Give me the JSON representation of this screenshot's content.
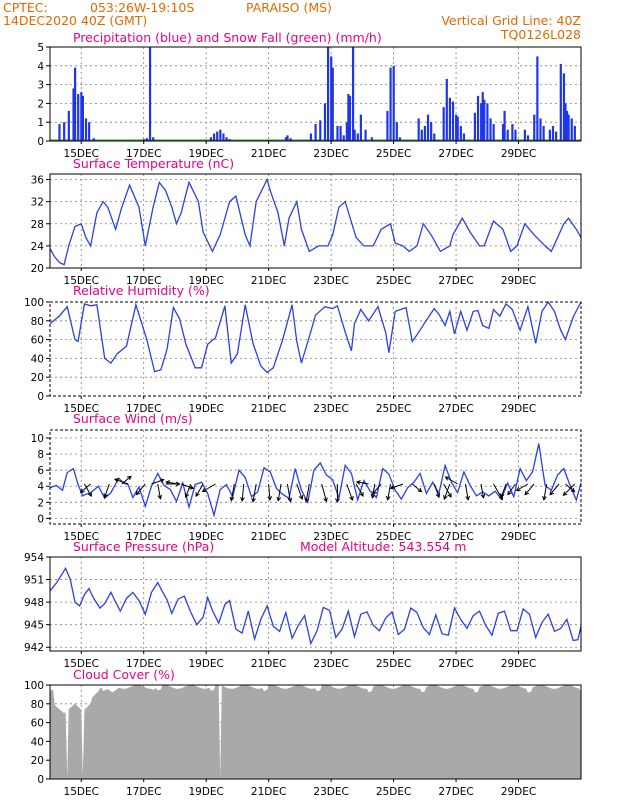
{
  "header": {
    "center": "CPTEC:",
    "coords": "053:26W-19:10S",
    "location": "PARAISO (MS)",
    "run": "14DEC2020 40Z (GMT)",
    "grid_note": "Vertical Grid Line: 40Z",
    "model_code": "TQ0126L028"
  },
  "colors": {
    "header": "#e06a00",
    "title": "#e8008a",
    "series": "#2b40e6",
    "precip": "#1f36e8",
    "snow": "#1ea51e",
    "cloud": "#a9a9a9"
  },
  "chart_data": [
    {
      "type": "bar",
      "title": "Precipitation (blue) and Snow Fall (green) (mm/h)",
      "ylim": [
        0,
        5
      ],
      "yticks": [
        "0",
        "1",
        "2",
        "3",
        "4",
        "5"
      ],
      "xticks": [
        "15DEC",
        "17DEC",
        "19DEC",
        "21DEC",
        "23DEC",
        "25DEC",
        "27DEC",
        "29DEC"
      ],
      "series": [
        {
          "name": "Precipitation",
          "bars": [
            [
              0.3,
              0.9
            ],
            [
              0.45,
              1.0
            ],
            [
              0.6,
              1.6
            ],
            [
              0.75,
              2.8
            ],
            [
              0.8,
              3.9
            ],
            [
              0.9,
              2.5
            ],
            [
              1.0,
              2.6
            ],
            [
              1.05,
              2.4
            ],
            [
              1.15,
              1.2
            ],
            [
              1.25,
              1.0
            ],
            [
              1.4,
              0.15
            ],
            [
              3.0,
              0.1
            ],
            [
              3.1,
              0.15
            ],
            [
              3.2,
              5.0
            ],
            [
              3.3,
              0.2
            ],
            [
              5.15,
              0.2
            ],
            [
              5.25,
              0.4
            ],
            [
              5.35,
              0.5
            ],
            [
              5.45,
              0.6
            ],
            [
              5.55,
              0.4
            ],
            [
              5.65,
              0.2
            ],
            [
              5.75,
              0.1
            ],
            [
              7.55,
              0.2
            ],
            [
              7.6,
              0.3
            ],
            [
              7.7,
              0.15
            ],
            [
              8.35,
              0.4
            ],
            [
              8.5,
              0.9
            ],
            [
              8.65,
              1.1
            ],
            [
              8.8,
              2.0
            ],
            [
              8.9,
              5.0
            ],
            [
              9.0,
              4.5
            ],
            [
              9.05,
              3.9
            ],
            [
              9.2,
              0.8
            ],
            [
              9.3,
              0.8
            ],
            [
              9.4,
              0.3
            ],
            [
              9.5,
              1.0
            ],
            [
              9.55,
              2.5
            ],
            [
              9.6,
              2.4
            ],
            [
              9.7,
              5.0
            ],
            [
              9.75,
              0.6
            ],
            [
              9.85,
              0.4
            ],
            [
              9.95,
              1.4
            ],
            [
              10.1,
              0.6
            ],
            [
              10.3,
              0.2
            ],
            [
              10.8,
              1.6
            ],
            [
              10.9,
              3.9
            ],
            [
              11.0,
              4.0
            ],
            [
              11.1,
              1.0
            ],
            [
              11.2,
              0.2
            ],
            [
              11.8,
              1.2
            ],
            [
              11.9,
              0.6
            ],
            [
              12.0,
              0.8
            ],
            [
              12.1,
              1.4
            ],
            [
              12.2,
              1.0
            ],
            [
              12.3,
              0.4
            ],
            [
              12.6,
              1.8
            ],
            [
              12.7,
              3.3
            ],
            [
              12.8,
              2.3
            ],
            [
              12.9,
              2.1
            ],
            [
              13.0,
              1.4
            ],
            [
              13.05,
              1.3
            ],
            [
              13.15,
              0.8
            ],
            [
              13.25,
              0.4
            ],
            [
              13.6,
              1.5
            ],
            [
              13.7,
              2.4
            ],
            [
              13.8,
              2.0
            ],
            [
              13.85,
              2.6
            ],
            [
              13.9,
              2.2
            ],
            [
              14.0,
              2.0
            ],
            [
              14.1,
              1.2
            ],
            [
              14.2,
              0.9
            ],
            [
              14.5,
              0.9
            ],
            [
              14.55,
              1.6
            ],
            [
              14.65,
              0.6
            ],
            [
              14.8,
              0.9
            ],
            [
              14.9,
              0.6
            ],
            [
              15.2,
              0.6
            ],
            [
              15.3,
              0.3
            ],
            [
              15.5,
              1.4
            ],
            [
              15.6,
              4.5
            ],
            [
              15.7,
              1.2
            ],
            [
              15.8,
              0.8
            ],
            [
              16.0,
              0.6
            ],
            [
              16.1,
              0.8
            ],
            [
              16.2,
              0.5
            ],
            [
              16.35,
              4.1
            ],
            [
              16.45,
              3.6
            ],
            [
              16.5,
              2.0
            ],
            [
              16.55,
              1.6
            ],
            [
              16.6,
              1.4
            ],
            [
              16.7,
              1.2
            ],
            [
              16.8,
              0.8
            ]
          ]
        },
        {
          "name": "Snow Fall",
          "values": [
            0,
            0
          ]
        }
      ]
    },
    {
      "type": "line",
      "title": "Surface Temperature (nC)",
      "ylim": [
        20,
        37
      ],
      "yticks": [
        "20",
        "24",
        "28",
        "32",
        "36"
      ],
      "xticks": [
        "15DEC",
        "17DEC",
        "19DEC",
        "21DEC",
        "23DEC",
        "25DEC",
        "27DEC",
        "29DEC"
      ],
      "x": [
        0,
        0.15,
        0.3,
        0.45,
        0.6,
        0.8,
        1.0,
        1.15,
        1.3,
        1.5,
        1.7,
        1.85,
        2.1,
        2.3,
        2.55,
        2.85,
        3.05,
        3.3,
        3.5,
        3.7,
        3.9,
        4.05,
        4.2,
        4.45,
        4.75,
        4.9,
        5.2,
        5.45,
        5.75,
        5.95,
        6.25,
        6.4,
        6.6,
        6.95,
        7.05,
        7.3,
        7.5,
        7.65,
        7.9,
        8.05,
        8.3,
        8.6,
        8.9,
        9.05,
        9.25,
        9.45,
        9.8,
        10.05,
        10.35,
        10.6,
        10.9,
        11.05,
        11.3,
        11.5,
        11.75,
        11.95,
        12.2,
        12.5,
        12.8,
        12.9,
        13.2,
        13.45,
        13.75,
        13.9,
        14.2,
        14.5,
        14.75,
        14.95,
        15.2,
        15.5,
        15.85,
        16.05,
        16.45,
        16.6,
        16.85,
        17.0
      ],
      "values": [
        23.5,
        22,
        21,
        20.6,
        24,
        27.5,
        28,
        25.5,
        24,
        30,
        32,
        31,
        27,
        31,
        35,
        31,
        24,
        31,
        35.5,
        34,
        31,
        28,
        30,
        35.5,
        32,
        26.5,
        23,
        26,
        32,
        33,
        26,
        24,
        32,
        36,
        34,
        30,
        24,
        29,
        32,
        27,
        23,
        24,
        24,
        26,
        31,
        32,
        25.5,
        24,
        24,
        27,
        28,
        24.5,
        24,
        23,
        24,
        28,
        26,
        23,
        24,
        26,
        29,
        26.5,
        24,
        24,
        28.5,
        27,
        23,
        24,
        28,
        26,
        24,
        23,
        28,
        29,
        27,
        25.5
      ]
    },
    {
      "type": "line",
      "title": "Relative Humidity (%)",
      "ylim": [
        0,
        100
      ],
      "yticks": [
        "0",
        "20",
        "40",
        "60",
        "80",
        "100"
      ],
      "xticks": [
        "15DEC",
        "17DEC",
        "19DEC",
        "21DEC",
        "23DEC",
        "25DEC",
        "27DEC",
        "29DEC"
      ],
      "x": [
        0,
        0.3,
        0.55,
        0.8,
        0.9,
        1.1,
        1.3,
        1.5,
        1.75,
        1.95,
        2.15,
        2.45,
        2.75,
        3.1,
        3.35,
        3.55,
        3.75,
        3.95,
        4.15,
        4.35,
        4.65,
        4.85,
        5.05,
        5.3,
        5.6,
        5.8,
        6.0,
        6.25,
        6.5,
        6.75,
        6.95,
        7.15,
        7.45,
        7.75,
        7.9,
        8.05,
        8.3,
        8.5,
        8.8,
        9.05,
        9.2,
        9.45,
        9.65,
        9.75,
        9.95,
        10.2,
        10.5,
        10.75,
        10.85,
        11.05,
        11.4,
        11.6,
        11.85,
        12.0,
        12.3,
        12.45,
        12.65,
        12.8,
        12.95,
        13.15,
        13.35,
        13.55,
        13.7,
        13.85,
        14.05,
        14.2,
        14.4,
        14.6,
        14.8,
        15.05,
        15.3,
        15.55,
        15.75,
        15.95,
        16.15,
        16.35,
        16.5,
        16.75,
        17.0
      ],
      "values": [
        77,
        85,
        95,
        60,
        58,
        98,
        96,
        97,
        40,
        35,
        45,
        53,
        97,
        60,
        26,
        28,
        50,
        94,
        82,
        55,
        30,
        30,
        55,
        62,
        96,
        35,
        45,
        97,
        56,
        32,
        25,
        30,
        60,
        97,
        58,
        35,
        63,
        86,
        95,
        93,
        96,
        68,
        48,
        77,
        92,
        80,
        95,
        67,
        46,
        90,
        94,
        58,
        70,
        78,
        93,
        87,
        75,
        90,
        66,
        90,
        70,
        90,
        91,
        75,
        72,
        92,
        85,
        98,
        92,
        70,
        95,
        56,
        90,
        100,
        90,
        70,
        60,
        84,
        100
      ]
    },
    {
      "type": "line",
      "title": "Surface Wind (m/s)",
      "ylim": [
        -0.7,
        11
      ],
      "yticks": [
        "0",
        "2",
        "4",
        "6",
        "8",
        "10"
      ],
      "xticks": [
        "15DEC",
        "17DEC",
        "19DEC",
        "21DEC",
        "23DEC",
        "25DEC",
        "27DEC",
        "29DEC"
      ],
      "x": [
        0,
        0.2,
        0.4,
        0.55,
        0.75,
        0.9,
        1.05,
        1.15,
        1.3,
        1.55,
        1.75,
        1.95,
        2.2,
        2.35,
        2.5,
        2.65,
        2.85,
        3.05,
        3.25,
        3.45,
        3.65,
        3.85,
        4.05,
        4.25,
        4.45,
        4.65,
        4.85,
        5.05,
        5.25,
        5.45,
        5.65,
        5.85,
        6.05,
        6.25,
        6.45,
        6.65,
        6.85,
        7.05,
        7.25,
        7.45,
        7.65,
        7.85,
        8.05,
        8.25,
        8.45,
        8.65,
        8.85,
        9.05,
        9.25,
        9.45,
        9.65,
        9.85,
        10.05,
        10.25,
        10.45,
        10.65,
        10.85,
        11.05,
        11.25,
        11.45,
        11.65,
        11.85,
        12.05,
        12.25,
        12.45,
        12.65,
        12.85,
        13.05,
        13.25,
        13.45,
        13.65,
        13.85,
        14.05,
        14.25,
        14.45,
        14.65,
        14.85,
        15.05,
        15.25,
        15.45,
        15.65,
        15.85,
        16.05,
        16.25,
        16.45,
        16.65,
        16.85,
        17.0
      ],
      "values": [
        3.8,
        4.1,
        3.5,
        5.7,
        6.2,
        4.2,
        2.8,
        3.0,
        3.2,
        4.0,
        2.5,
        3.2,
        5.0,
        4.4,
        4.2,
        2.6,
        3.9,
        1.5,
        4.0,
        5.6,
        4.1,
        3.6,
        2.1,
        4.4,
        1.4,
        4.2,
        4.5,
        3.1,
        0.4,
        3.6,
        4.2,
        2.7,
        6.0,
        5.1,
        2.7,
        3.3,
        6.3,
        5.8,
        3.7,
        3.0,
        2.5,
        6.2,
        3.5,
        2.0,
        6.0,
        6.9,
        5.4,
        4.8,
        2.5,
        6.6,
        5.6,
        2.3,
        4.7,
        3.4,
        2.6,
        6.2,
        5.5,
        3.5,
        2.4,
        3.8,
        4.5,
        5.6,
        3.1,
        4.5,
        3.1,
        6.6,
        4.5,
        3.2,
        5.8,
        4.1,
        2.8,
        3.3,
        2.8,
        3.4,
        2.4,
        4.4,
        2.7,
        6.2,
        4.7,
        5.8,
        9.3,
        4.1,
        3.5,
        5.4,
        6.2,
        4.1,
        2.3,
        4.4
      ]
    },
    {
      "type": "line",
      "title": "Surface Pressure (hPa)",
      "subtitle": "Model Altitude: 543.554 m",
      "ylim": [
        941.5,
        954
      ],
      "yticks": [
        "942",
        "945",
        "948",
        "951",
        "954"
      ],
      "xticks": [
        "15DEC",
        "17DEC",
        "19DEC",
        "21DEC",
        "23DEC",
        "25DEC",
        "27DEC",
        "29DEC"
      ],
      "x": [
        0,
        0.2,
        0.35,
        0.5,
        0.65,
        0.8,
        0.95,
        1.1,
        1.25,
        1.4,
        1.6,
        1.75,
        1.95,
        2.1,
        2.25,
        2.45,
        2.65,
        2.85,
        3.05,
        3.25,
        3.45,
        3.6,
        3.75,
        3.9,
        4.1,
        4.3,
        4.5,
        4.7,
        4.9,
        5.05,
        5.2,
        5.4,
        5.6,
        5.75,
        5.95,
        6.15,
        6.35,
        6.55,
        6.75,
        6.95,
        7.15,
        7.35,
        7.55,
        7.75,
        7.95,
        8.15,
        8.35,
        8.55,
        8.75,
        8.95,
        9.15,
        9.35,
        9.55,
        9.75,
        9.95,
        10.15,
        10.35,
        10.55,
        10.75,
        10.95,
        11.15,
        11.35,
        11.55,
        11.75,
        11.95,
        12.15,
        12.35,
        12.55,
        12.75,
        12.95,
        13.15,
        13.35,
        13.55,
        13.75,
        13.95,
        14.15,
        14.35,
        14.55,
        14.75,
        14.95,
        15.15,
        15.35,
        15.55,
        15.75,
        15.95,
        16.15,
        16.35,
        16.55,
        16.75,
        16.9,
        17.0
      ],
      "values": [
        949.5,
        950.5,
        951.5,
        952.5,
        951,
        948,
        947.5,
        949,
        949.8,
        948.5,
        947.2,
        947.8,
        949.3,
        948,
        946.8,
        948.5,
        949.3,
        948.2,
        946.4,
        949.3,
        950.6,
        949.4,
        948.3,
        946.5,
        948.4,
        948.8,
        946.7,
        945,
        946,
        948.6,
        946.9,
        945.2,
        947.7,
        948.2,
        944.4,
        943.9,
        946.8,
        943.1,
        945.7,
        947.5,
        944.8,
        944.1,
        946.6,
        943.2,
        944.9,
        946.2,
        942.5,
        944.2,
        947.3,
        946.9,
        943.3,
        944.4,
        946.8,
        943.4,
        946.4,
        946.7,
        944.9,
        944.2,
        945.9,
        946.7,
        943.7,
        944.4,
        947.2,
        946.6,
        944.6,
        943.7,
        946.3,
        943.8,
        943.6,
        947.2,
        945.7,
        944.5,
        946.2,
        946.8,
        944.9,
        943.6,
        946.5,
        946.8,
        944.2,
        944.2,
        947.1,
        946.4,
        943.3,
        945.3,
        946.4,
        944.1,
        944.5,
        945.7,
        942.9,
        943,
        944.8
      ]
    },
    {
      "type": "bar",
      "title": "Cloud Cover (%)",
      "ylim": [
        0,
        100
      ],
      "yticks": [
        "0",
        "20",
        "40",
        "60",
        "80",
        "100"
      ],
      "xticks": [
        "15DEC",
        "17DEC",
        "19DEC",
        "21DEC",
        "23DEC",
        "25DEC",
        "27DEC",
        "29DEC"
      ],
      "notes": "Near-overcast cover throughout (about 90-100%), with dips to roughly 70-85% on 14-15DEC and near-zero gaps around 14DEC 13Z, 15DEC 01Z and 19DEC 11Z."
    }
  ]
}
